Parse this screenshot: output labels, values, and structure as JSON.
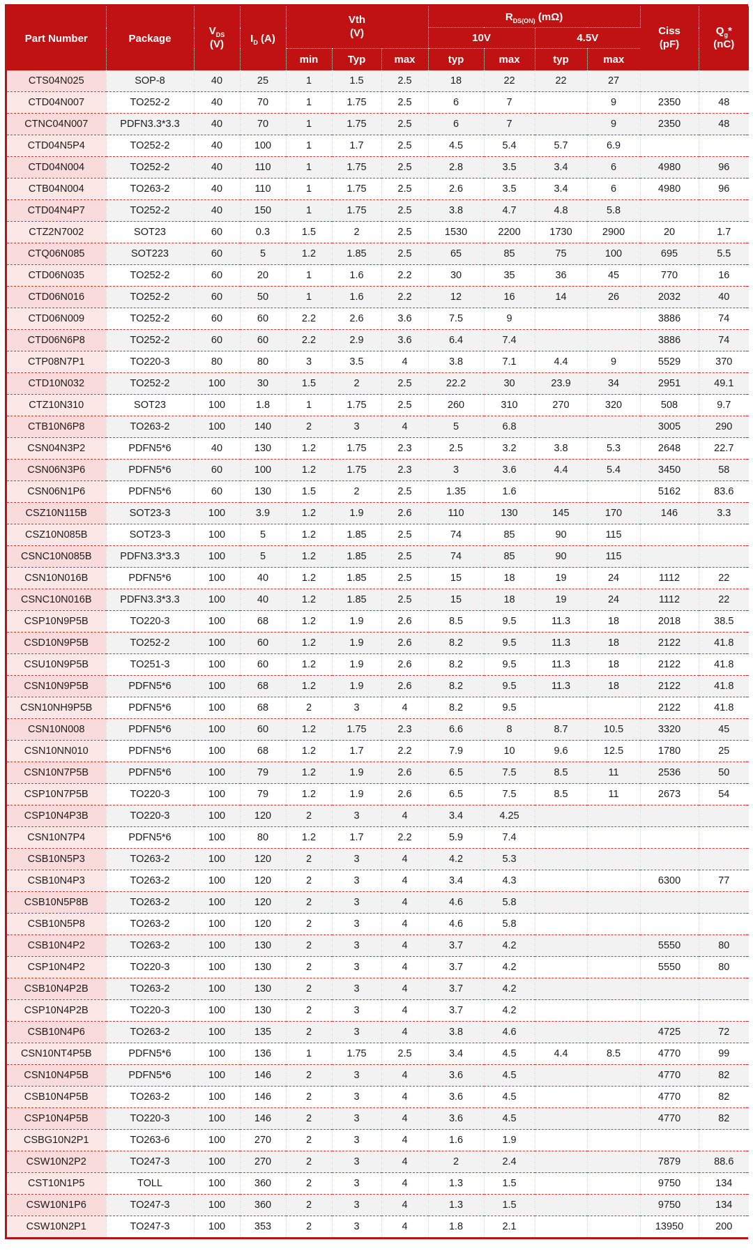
{
  "title": "MOSFET product selection table",
  "colors": {
    "header_bg": "#c01212",
    "outer_border": "#b91414",
    "row_separator": "#e03030",
    "row_stripe": "#f2f2f2",
    "part_col_odd": "#f9dbdb",
    "part_col_even": "#fce7e7"
  },
  "header": {
    "part_number": "Part Number",
    "package": "Package",
    "vds": {
      "base": "V",
      "sub": "DS",
      "unit": "(V)"
    },
    "id": {
      "base": "I",
      "sub": "D",
      "unit": "(A)"
    },
    "vth": {
      "base": "Vth",
      "unit": "(V)"
    },
    "rdson": {
      "base": "R",
      "sub": "DS(ON)",
      "unit": "(mΩ)"
    },
    "v10": "10V",
    "v45": "4.5V",
    "sub_labels": [
      "min",
      "Typ",
      "max",
      "typ",
      "max",
      "typ",
      "max"
    ],
    "ciss": {
      "base": "Ciss",
      "unit": "(pF)"
    },
    "qg": {
      "base": "Q",
      "sub": "g",
      "star": "*",
      "unit": "(nC)"
    }
  },
  "columns": [
    "Part Number",
    "Package",
    "VDS (V)",
    "ID (A)",
    "Vth min (V)",
    "Vth Typ (V)",
    "Vth max (V)",
    "RDS(ON) 10V typ (mΩ)",
    "RDS(ON) 10V max (mΩ)",
    "RDS(ON) 4.5V typ (mΩ)",
    "RDS(ON) 4.5V max (mΩ)",
    "Ciss (pF)",
    "Qg* (nC)"
  ],
  "rows": [
    [
      "CTS04N025",
      "SOP-8",
      "40",
      "25",
      "1",
      "1.5",
      "2.5",
      "18",
      "22",
      "22",
      "27",
      "",
      ""
    ],
    [
      "CTD04N007",
      "TO252-2",
      "40",
      "70",
      "1",
      "1.75",
      "2.5",
      "6",
      "7",
      "",
      "9",
      "2350",
      "48"
    ],
    [
      "CTNC04N007",
      "PDFN3.3*3.3",
      "40",
      "70",
      "1",
      "1.75",
      "2.5",
      "6",
      "7",
      "",
      "9",
      "2350",
      "48"
    ],
    [
      "CTD04N5P4",
      "TO252-2",
      "40",
      "100",
      "1",
      "1.7",
      "2.5",
      "4.5",
      "5.4",
      "5.7",
      "6.9",
      "",
      ""
    ],
    [
      "CTD04N004",
      "TO252-2",
      "40",
      "110",
      "1",
      "1.75",
      "2.5",
      "2.8",
      "3.5",
      "3.4",
      "6",
      "4980",
      "96"
    ],
    [
      "CTB04N004",
      "TO263-2",
      "40",
      "110",
      "1",
      "1.75",
      "2.5",
      "2.6",
      "3.5",
      "3.4",
      "6",
      "4980",
      "96"
    ],
    [
      "CTD04N4P7",
      "TO252-2",
      "40",
      "150",
      "1",
      "1.75",
      "2.5",
      "3.8",
      "4.7",
      "4.8",
      "5.8",
      "",
      ""
    ],
    [
      "CTZ2N7002",
      "SOT23",
      "60",
      "0.3",
      "1.5",
      "2",
      "2.5",
      "1530",
      "2200",
      "1730",
      "2900",
      "20",
      "1.7"
    ],
    [
      "CTQ06N085",
      "SOT223",
      "60",
      "5",
      "1.2",
      "1.85",
      "2.5",
      "65",
      "85",
      "75",
      "100",
      "695",
      "5.5"
    ],
    [
      "CTD06N035",
      "TO252-2",
      "60",
      "20",
      "1",
      "1.6",
      "2.2",
      "30",
      "35",
      "36",
      "45",
      "770",
      "16"
    ],
    [
      "CTD06N016",
      "TO252-2",
      "60",
      "50",
      "1",
      "1.6",
      "2.2",
      "12",
      "16",
      "14",
      "26",
      "2032",
      "40"
    ],
    [
      "CTD06N009",
      "TO252-2",
      "60",
      "60",
      "2.2",
      "2.6",
      "3.6",
      "7.5",
      "9",
      "",
      "",
      "3886",
      "74"
    ],
    [
      "CTD06N6P8",
      "TO252-2",
      "60",
      "60",
      "2.2",
      "2.9",
      "3.6",
      "6.4",
      "7.4",
      "",
      "",
      "3886",
      "74"
    ],
    [
      "CTP08N7P1",
      "TO220-3",
      "80",
      "80",
      "3",
      "3.5",
      "4",
      "3.8",
      "7.1",
      "4.4",
      "9",
      "5529",
      "370"
    ],
    [
      "CTD10N032",
      "TO252-2",
      "100",
      "30",
      "1.5",
      "2",
      "2.5",
      "22.2",
      "30",
      "23.9",
      "34",
      "2951",
      "49.1"
    ],
    [
      "CTZ10N310",
      "SOT23",
      "100",
      "1.8",
      "1",
      "1.75",
      "2.5",
      "260",
      "310",
      "270",
      "320",
      "508",
      "9.7"
    ],
    [
      "CTB10N6P8",
      "TO263-2",
      "100",
      "140",
      "2",
      "3",
      "4",
      "5",
      "6.8",
      "",
      "",
      "3005",
      "290"
    ],
    [
      "CSN04N3P2",
      "PDFN5*6",
      "40",
      "130",
      "1.2",
      "1.75",
      "2.3",
      "2.5",
      "3.2",
      "3.8",
      "5.3",
      "2648",
      "22.7"
    ],
    [
      "CSN06N3P6",
      "PDFN5*6",
      "60",
      "100",
      "1.2",
      "1.75",
      "2.3",
      "3",
      "3.6",
      "4.4",
      "5.4",
      "3450",
      "58"
    ],
    [
      "CSN06N1P6",
      "PDFN5*6",
      "60",
      "130",
      "1.5",
      "2",
      "2.5",
      "1.35",
      "1.6",
      "",
      "",
      "5162",
      "83.6"
    ],
    [
      "CSZ10N115B",
      "SOT23-3",
      "100",
      "3.9",
      "1.2",
      "1.9",
      "2.6",
      "110",
      "130",
      "145",
      "170",
      "146",
      "3.3"
    ],
    [
      "CSZ10N085B",
      "SOT23-3",
      "100",
      "5",
      "1.2",
      "1.85",
      "2.5",
      "74",
      "85",
      "90",
      "115",
      "",
      ""
    ],
    [
      "CSNC10N085B",
      "PDFN3.3*3.3",
      "100",
      "5",
      "1.2",
      "1.85",
      "2.5",
      "74",
      "85",
      "90",
      "115",
      "",
      ""
    ],
    [
      "CSN10N016B",
      "PDFN5*6",
      "100",
      "40",
      "1.2",
      "1.85",
      "2.5",
      "15",
      "18",
      "19",
      "24",
      "1112",
      "22"
    ],
    [
      "CSNC10N016B",
      "PDFN3.3*3.3",
      "100",
      "40",
      "1.2",
      "1.85",
      "2.5",
      "15",
      "18",
      "19",
      "24",
      "1112",
      "22"
    ],
    [
      "CSP10N9P5B",
      "TO220-3",
      "100",
      "68",
      "1.2",
      "1.9",
      "2.6",
      "8.5",
      "9.5",
      "11.3",
      "18",
      "2018",
      "38.5"
    ],
    [
      "CSD10N9P5B",
      "TO252-2",
      "100",
      "60",
      "1.2",
      "1.9",
      "2.6",
      "8.2",
      "9.5",
      "11.3",
      "18",
      "2122",
      "41.8"
    ],
    [
      "CSU10N9P5B",
      "TO251-3",
      "100",
      "60",
      "1.2",
      "1.9",
      "2.6",
      "8.2",
      "9.5",
      "11.3",
      "18",
      "2122",
      "41.8"
    ],
    [
      "CSN10N9P5B",
      "PDFN5*6",
      "100",
      "68",
      "1.2",
      "1.9",
      "2.6",
      "8.2",
      "9.5",
      "11.3",
      "18",
      "2122",
      "41.8"
    ],
    [
      "CSN10NH9P5B",
      "PDFN5*6",
      "100",
      "68",
      "2",
      "3",
      "4",
      "8.2",
      "9.5",
      "",
      "",
      "2122",
      "41.8"
    ],
    [
      "CSN10N008",
      "PDFN5*6",
      "100",
      "60",
      "1.2",
      "1.75",
      "2.3",
      "6.6",
      "8",
      "8.7",
      "10.5",
      "3320",
      "45"
    ],
    [
      "CSN10NN010",
      "PDFN5*6",
      "100",
      "68",
      "1.2",
      "1.7",
      "2.2",
      "7.9",
      "10",
      "9.6",
      "12.5",
      "1780",
      "25"
    ],
    [
      "CSN10N7P5B",
      "PDFN5*6",
      "100",
      "79",
      "1.2",
      "1.9",
      "2.6",
      "6.5",
      "7.5",
      "8.5",
      "11",
      "2536",
      "50"
    ],
    [
      "CSP10N7P5B",
      "TO220-3",
      "100",
      "79",
      "1.2",
      "1.9",
      "2.6",
      "6.5",
      "7.5",
      "8.5",
      "11",
      "2673",
      "54"
    ],
    [
      "CSP10N4P3B",
      "TO220-3",
      "100",
      "120",
      "2",
      "3",
      "4",
      "3.4",
      "4.25",
      "",
      "",
      "",
      ""
    ],
    [
      "CSN10N7P4",
      "PDFN5*6",
      "100",
      "80",
      "1.2",
      "1.7",
      "2.2",
      "5.9",
      "7.4",
      "",
      "",
      "",
      ""
    ],
    [
      "CSB10N5P3",
      "TO263-2",
      "100",
      "120",
      "2",
      "3",
      "4",
      "4.2",
      "5.3",
      "",
      "",
      "",
      ""
    ],
    [
      "CSB10N4P3",
      "TO263-2",
      "100",
      "120",
      "2",
      "3",
      "4",
      "3.4",
      "4.3",
      "",
      "",
      "6300",
      "77"
    ],
    [
      "CSB10N5P8B",
      "TO263-2",
      "100",
      "120",
      "2",
      "3",
      "4",
      "4.6",
      "5.8",
      "",
      "",
      "",
      ""
    ],
    [
      "CSB10N5P8",
      "TO263-2",
      "100",
      "120",
      "2",
      "3",
      "4",
      "4.6",
      "5.8",
      "",
      "",
      "",
      ""
    ],
    [
      "CSB10N4P2",
      "TO263-2",
      "100",
      "130",
      "2",
      "3",
      "4",
      "3.7",
      "4.2",
      "",
      "",
      "5550",
      "80"
    ],
    [
      "CSP10N4P2",
      "TO220-3",
      "100",
      "130",
      "2",
      "3",
      "4",
      "3.7",
      "4.2",
      "",
      "",
      "5550",
      "80"
    ],
    [
      "CSB10N4P2B",
      "TO263-2",
      "100",
      "130",
      "2",
      "3",
      "4",
      "3.7",
      "4.2",
      "",
      "",
      "",
      ""
    ],
    [
      "CSP10N4P2B",
      "TO220-3",
      "100",
      "130",
      "2",
      "3",
      "4",
      "3.7",
      "4.2",
      "",
      "",
      "",
      ""
    ],
    [
      "CSB10N4P6",
      "TO263-2",
      "100",
      "135",
      "2",
      "3",
      "4",
      "3.8",
      "4.6",
      "",
      "",
      "4725",
      "72"
    ],
    [
      "CSN10NT4P5B",
      "PDFN5*6",
      "100",
      "136",
      "1",
      "1.75",
      "2.5",
      "3.4",
      "4.5",
      "4.4",
      "8.5",
      "4770",
      "99"
    ],
    [
      "CSN10N4P5B",
      "PDFN5*6",
      "100",
      "146",
      "2",
      "3",
      "4",
      "3.6",
      "4.5",
      "",
      "",
      "4770",
      "82"
    ],
    [
      "CSB10N4P5B",
      "TO263-2",
      "100",
      "146",
      "2",
      "3",
      "4",
      "3.6",
      "4.5",
      "",
      "",
      "4770",
      "82"
    ],
    [
      "CSP10N4P5B",
      "TO220-3",
      "100",
      "146",
      "2",
      "3",
      "4",
      "3.6",
      "4.5",
      "",
      "",
      "4770",
      "82"
    ],
    [
      "CSBG10N2P1",
      "TO263-6",
      "100",
      "270",
      "2",
      "3",
      "4",
      "1.6",
      "1.9",
      "",
      "",
      "",
      ""
    ],
    [
      "CSW10N2P2",
      "TO247-3",
      "100",
      "270",
      "2",
      "3",
      "4",
      "2",
      "2.4",
      "",
      "",
      "7879",
      "88.6"
    ],
    [
      "CST10N1P5",
      "TOLL",
      "100",
      "360",
      "2",
      "3",
      "4",
      "1.3",
      "1.5",
      "",
      "",
      "9750",
      "134"
    ],
    [
      "CSW10N1P6",
      "TO247-3",
      "100",
      "360",
      "2",
      "3",
      "4",
      "1.3",
      "1.5",
      "",
      "",
      "9750",
      "134"
    ],
    [
      "CSW10N2P1",
      "TO247-3",
      "100",
      "353",
      "2",
      "3",
      "4",
      "1.8",
      "2.1",
      "",
      "",
      "13950",
      "200"
    ]
  ]
}
